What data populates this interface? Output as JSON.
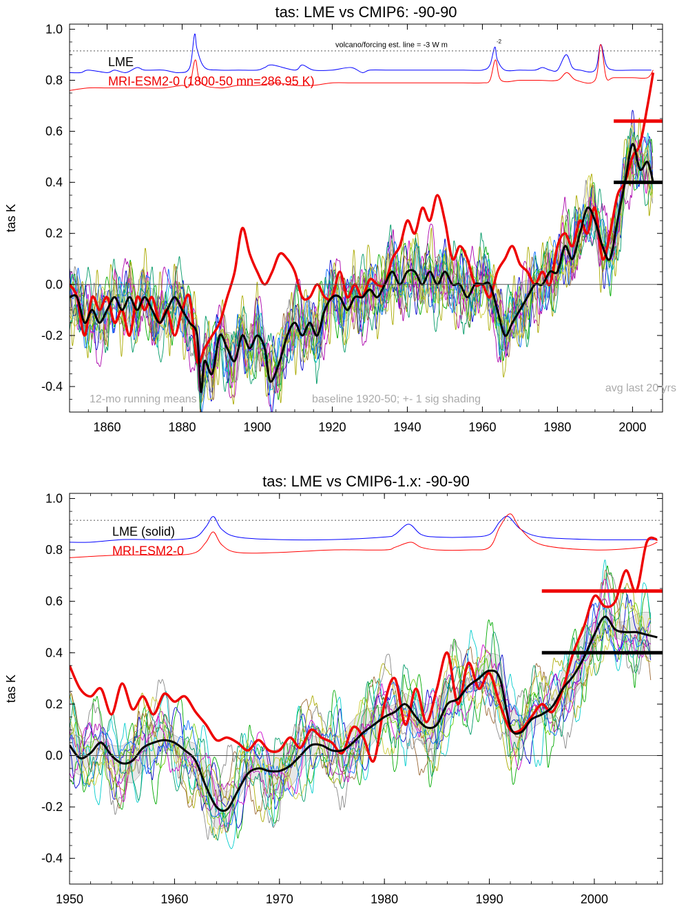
{
  "chart_data": [
    {
      "type": "line",
      "title": "tas: LME vs CMIP6: -90-90",
      "ylabel": "tas K",
      "xlim": [
        1850,
        2008
      ],
      "ylim": [
        -0.5,
        1.02
      ],
      "x_ticks": [
        1860,
        1880,
        1900,
        1920,
        1940,
        1960,
        1980,
        2000
      ],
      "y_ticks": [
        -0.4,
        -0.2,
        0.0,
        0.2,
        0.4,
        0.6,
        0.8,
        1.0
      ],
      "y_tick_labels": [
        "-0.4",
        "-0.2",
        "0.0",
        "0.2",
        "0.4",
        "0.6",
        "0.8",
        "1.0"
      ],
      "legend": {
        "lme": "LME",
        "model": "MRI-ESM2-0 (1800-50 mn=286.95 K)"
      },
      "notes": {
        "running": "12-mo running means",
        "baseline": "baseline 1920-50; +- 1 sig shading",
        "avg": "avg last 20 yrs",
        "volcano": "volcano/forcing est.      line = -3 W m",
        "volcano_sup": "-2"
      },
      "zero_line": 0.0,
      "dotted_line": 0.915,
      "avg_last_20yrs": {
        "x_range": [
          1995,
          2005.5
        ],
        "lme": 0.4,
        "model": 0.64
      },
      "lme_forcing": {
        "name": "LME",
        "color": "#0000ff",
        "x": [
          1850,
          1853,
          1855,
          1860,
          1862,
          1865,
          1868,
          1870,
          1875,
          1879,
          1882,
          1883.3,
          1884,
          1886,
          1890,
          1895,
          1900,
          1902,
          1904,
          1910,
          1912,
          1915,
          1920,
          1925,
          1928,
          1930,
          1935,
          1940,
          1945,
          1950,
          1955,
          1960,
          1962,
          1963.3,
          1964,
          1966,
          1970,
          1974,
          1976,
          1978,
          1980,
          1982.3,
          1984,
          1986,
          1990,
          1991.5,
          1993,
          1995,
          2000,
          2005
        ],
        "y": [
          0.83,
          0.83,
          0.84,
          0.83,
          0.84,
          0.83,
          0.85,
          0.84,
          0.84,
          0.83,
          0.85,
          0.98,
          0.92,
          0.85,
          0.84,
          0.84,
          0.84,
          0.85,
          0.86,
          0.84,
          0.86,
          0.84,
          0.84,
          0.85,
          0.83,
          0.84,
          0.84,
          0.84,
          0.84,
          0.84,
          0.84,
          0.84,
          0.86,
          0.93,
          0.88,
          0.84,
          0.84,
          0.84,
          0.85,
          0.84,
          0.84,
          0.9,
          0.85,
          0.84,
          0.84,
          0.94,
          0.86,
          0.84,
          0.84,
          0.84
        ]
      },
      "model_forcing": {
        "name": "MRI-ESM2-0",
        "color": "#ff0000",
        "x": [
          1850,
          1855,
          1860,
          1865,
          1870,
          1875,
          1880,
          1882,
          1883.5,
          1885,
          1890,
          1895,
          1900,
          1905,
          1910,
          1915,
          1920,
          1925,
          1930,
          1935,
          1940,
          1945,
          1950,
          1955,
          1960,
          1962,
          1963.5,
          1965,
          1970,
          1975,
          1980,
          1982.5,
          1985,
          1990,
          1991.5,
          1993,
          1995,
          2000,
          2004,
          2005.5
        ],
        "y": [
          0.76,
          0.77,
          0.77,
          0.77,
          0.77,
          0.77,
          0.78,
          0.78,
          0.88,
          0.79,
          0.77,
          0.78,
          0.78,
          0.79,
          0.78,
          0.78,
          0.79,
          0.79,
          0.79,
          0.79,
          0.79,
          0.79,
          0.79,
          0.79,
          0.79,
          0.8,
          0.88,
          0.8,
          0.8,
          0.8,
          0.8,
          0.83,
          0.8,
          0.8,
          0.94,
          0.81,
          0.81,
          0.81,
          0.81,
          0.84
        ]
      },
      "series": [
        {
          "name": "MRI-ESM2-0",
          "color": "#ee0000",
          "x": [
            1850,
            1852,
            1854,
            1856,
            1858,
            1860,
            1862,
            1864,
            1866,
            1868,
            1870,
            1872,
            1874,
            1876,
            1878,
            1880,
            1882,
            1884,
            1886,
            1888,
            1890,
            1892,
            1894,
            1896,
            1898,
            1900,
            1902,
            1904,
            1906,
            1908,
            1910,
            1912,
            1914,
            1916,
            1918,
            1920,
            1922,
            1924,
            1926,
            1928,
            1930,
            1932,
            1934,
            1936,
            1938,
            1940,
            1942,
            1944,
            1946,
            1948,
            1950,
            1952,
            1954,
            1956,
            1958,
            1960,
            1962,
            1964,
            1966,
            1968,
            1970,
            1972,
            1974,
            1976,
            1978,
            1980,
            1982,
            1984,
            1986,
            1988,
            1990,
            1992,
            1994,
            1996,
            1998,
            2000,
            2002,
            2004,
            2005.5
          ],
          "y": [
            0.0,
            -0.05,
            -0.2,
            -0.05,
            -0.1,
            -0.05,
            -0.15,
            -0.1,
            -0.2,
            -0.05,
            -0.1,
            -0.05,
            -0.15,
            -0.1,
            -0.2,
            -0.1,
            -0.05,
            -0.3,
            -0.25,
            -0.2,
            -0.15,
            -0.05,
            0.05,
            0.22,
            0.12,
            0.05,
            0.0,
            0.05,
            0.12,
            0.1,
            0.05,
            -0.05,
            -0.05,
            0.0,
            -0.05,
            -0.05,
            0.05,
            -0.05,
            0.0,
            -0.05,
            0.02,
            0.0,
            0.0,
            0.1,
            0.15,
            0.25,
            0.2,
            0.3,
            0.25,
            0.35,
            0.25,
            0.1,
            0.15,
            0.1,
            0.0,
            0.0,
            -0.05,
            0.05,
            0.1,
            0.15,
            0.08,
            0.05,
            0.0,
            0.05,
            0.0,
            0.15,
            0.2,
            0.15,
            0.25,
            0.2,
            0.3,
            0.1,
            0.2,
            0.35,
            0.4,
            0.5,
            0.55,
            0.7,
            0.83
          ]
        },
        {
          "name": "LME",
          "color": "#000000",
          "x": [
            1850,
            1852,
            1854,
            1856,
            1858,
            1860,
            1862,
            1864,
            1866,
            1868,
            1870,
            1872,
            1874,
            1876,
            1878,
            1880,
            1882,
            1884,
            1885,
            1886,
            1888,
            1890,
            1892,
            1894,
            1896,
            1898,
            1900,
            1902,
            1903.5,
            1906,
            1908,
            1910,
            1912,
            1914,
            1916,
            1918,
            1920,
            1922,
            1924,
            1926,
            1928,
            1930,
            1932,
            1934,
            1936,
            1938,
            1940,
            1942,
            1944,
            1946,
            1948,
            1950,
            1952,
            1954,
            1956,
            1958,
            1960,
            1962,
            1964,
            1966,
            1968,
            1970,
            1972,
            1974,
            1976,
            1978,
            1980,
            1982,
            1984,
            1986,
            1988,
            1990,
            1992,
            1994,
            1996,
            1998,
            2000,
            2002,
            2004,
            2005.5
          ],
          "y": [
            -0.05,
            -0.05,
            -0.15,
            -0.1,
            -0.15,
            -0.1,
            -0.05,
            -0.1,
            -0.05,
            -0.1,
            -0.05,
            -0.1,
            -0.15,
            -0.1,
            -0.05,
            -0.1,
            -0.15,
            -0.2,
            -0.42,
            -0.3,
            -0.35,
            -0.2,
            -0.25,
            -0.3,
            -0.2,
            -0.25,
            -0.2,
            -0.25,
            -0.38,
            -0.3,
            -0.2,
            -0.15,
            -0.2,
            -0.15,
            -0.2,
            -0.1,
            -0.05,
            -0.05,
            -0.1,
            -0.05,
            -0.05,
            -0.02,
            -0.05,
            0.0,
            0.05,
            0.0,
            0.05,
            0.05,
            0.0,
            0.05,
            0.0,
            0.05,
            0.0,
            0.0,
            -0.05,
            0.0,
            0.0,
            0.0,
            -0.1,
            -0.2,
            -0.15,
            -0.1,
            -0.05,
            0.0,
            0.0,
            0.05,
            0.05,
            0.15,
            0.1,
            0.2,
            0.3,
            0.25,
            0.15,
            0.1,
            0.25,
            0.4,
            0.55,
            0.45,
            0.48,
            0.4
          ]
        }
      ]
    },
    {
      "type": "line",
      "title": "tas: LME vs CMIP6-1.x: -90-90",
      "ylabel": "tas K",
      "xlim": [
        1950,
        2006.5
      ],
      "ylim": [
        -0.5,
        1.02
      ],
      "x_ticks": [
        1950,
        1960,
        1970,
        1980,
        1990,
        2000
      ],
      "y_ticks": [
        -0.4,
        -0.2,
        0.0,
        0.2,
        0.4,
        0.6,
        0.8,
        1.0
      ],
      "y_tick_labels": [
        "-0.4",
        "-0.2",
        "0.0",
        "0.2",
        "0.4",
        "0.6",
        "0.8",
        "1.0"
      ],
      "legend": {
        "lme": "LME (solid)",
        "model": "MRI-ESM2-0"
      },
      "zero_line": 0.0,
      "dotted_line": 0.915,
      "avg_last_20yrs": {
        "x_range": [
          1995,
          2005.5
        ],
        "lme": 0.4,
        "model": 0.64
      },
      "lme_forcing": {
        "name": "LME",
        "color": "#0000ff",
        "x": [
          1950,
          1952,
          1955,
          1958,
          1960,
          1962,
          1963,
          1963.7,
          1964.5,
          1966,
          1970,
          1975,
          1980,
          1981,
          1982.3,
          1983.5,
          1985,
          1988,
          1990,
          1991,
          1991.8,
          1993,
          1995,
          2000,
          2005,
          2006
        ],
        "y": [
          0.83,
          0.83,
          0.84,
          0.84,
          0.84,
          0.85,
          0.89,
          0.93,
          0.88,
          0.85,
          0.84,
          0.84,
          0.85,
          0.86,
          0.9,
          0.86,
          0.85,
          0.85,
          0.86,
          0.91,
          0.93,
          0.88,
          0.85,
          0.84,
          0.84,
          0.84
        ]
      },
      "model_forcing": {
        "name": "MRI-ESM2-0",
        "color": "#ff0000",
        "x": [
          1950,
          1955,
          1960,
          1962,
          1963,
          1963.7,
          1964.5,
          1966,
          1970,
          1975,
          1980,
          1981,
          1982.5,
          1983.5,
          1985,
          1988,
          1990,
          1991,
          1992,
          1993,
          1995,
          2000,
          2004.5,
          2006
        ],
        "y": [
          0.77,
          0.78,
          0.78,
          0.79,
          0.83,
          0.87,
          0.82,
          0.79,
          0.79,
          0.8,
          0.8,
          0.81,
          0.83,
          0.81,
          0.8,
          0.8,
          0.81,
          0.89,
          0.94,
          0.88,
          0.82,
          0.8,
          0.81,
          0.83
        ]
      },
      "series": [
        {
          "name": "MRI-ESM2-0",
          "color": "#ee0000",
          "x": [
            1950,
            1951,
            1952,
            1953,
            1954,
            1955,
            1956,
            1957,
            1958,
            1959,
            1960,
            1961,
            1962,
            1963,
            1964,
            1965,
            1966,
            1967,
            1968,
            1969,
            1970,
            1971,
            1972,
            1973,
            1974,
            1975,
            1976,
            1977,
            1978,
            1979,
            1980,
            1981,
            1982,
            1983,
            1984,
            1985,
            1986,
            1987,
            1988,
            1989,
            1990,
            1991,
            1992,
            1993,
            1994,
            1995,
            1996,
            1997,
            1998,
            1999,
            2000,
            2001,
            2002,
            2003,
            2004,
            2005,
            2006
          ],
          "y": [
            0.35,
            0.26,
            0.23,
            0.26,
            0.16,
            0.28,
            0.18,
            0.23,
            0.16,
            0.24,
            0.21,
            0.23,
            0.17,
            0.12,
            0.06,
            0.07,
            0.05,
            0.02,
            0.06,
            0.02,
            0.02,
            0.07,
            0.03,
            0.1,
            0.07,
            0.05,
            0.01,
            0.11,
            0.07,
            -0.02,
            0.2,
            0.3,
            0.12,
            0.26,
            0.13,
            0.26,
            0.4,
            0.2,
            0.36,
            0.26,
            0.32,
            0.2,
            0.1,
            0.1,
            0.15,
            0.2,
            0.17,
            0.26,
            0.4,
            0.5,
            0.62,
            0.58,
            0.6,
            0.72,
            0.64,
            0.83,
            0.84
          ]
        },
        {
          "name": "LME (solid)",
          "color": "#000000",
          "x": [
            1950,
            1951,
            1952,
            1953,
            1954,
            1955,
            1956,
            1957,
            1958,
            1959,
            1960,
            1961,
            1962,
            1963,
            1964,
            1965,
            1966,
            1967,
            1968,
            1969,
            1970,
            1971,
            1972,
            1973,
            1974,
            1975,
            1976,
            1977,
            1978,
            1979,
            1980,
            1981,
            1982,
            1983,
            1984,
            1985,
            1986,
            1987,
            1988,
            1989,
            1990,
            1991,
            1992,
            1993,
            1994,
            1995,
            1996,
            1997,
            1998,
            1999,
            2000,
            2001,
            2002,
            2003,
            2004,
            2005,
            2006
          ],
          "y": [
            0.04,
            -0.01,
            0.01,
            0.05,
            0.0,
            -0.03,
            -0.02,
            0.03,
            0.05,
            0.06,
            0.05,
            0.02,
            -0.02,
            -0.12,
            -0.2,
            -0.21,
            -0.14,
            -0.07,
            -0.05,
            -0.06,
            -0.06,
            -0.04,
            0.0,
            0.04,
            0.04,
            0.02,
            0.02,
            0.05,
            0.09,
            0.12,
            0.15,
            0.17,
            0.2,
            0.15,
            0.11,
            0.12,
            0.2,
            0.22,
            0.27,
            0.3,
            0.33,
            0.3,
            0.11,
            0.09,
            0.14,
            0.16,
            0.19,
            0.26,
            0.31,
            0.38,
            0.47,
            0.54,
            0.49,
            0.48,
            0.48,
            0.47,
            0.46
          ]
        }
      ]
    }
  ]
}
